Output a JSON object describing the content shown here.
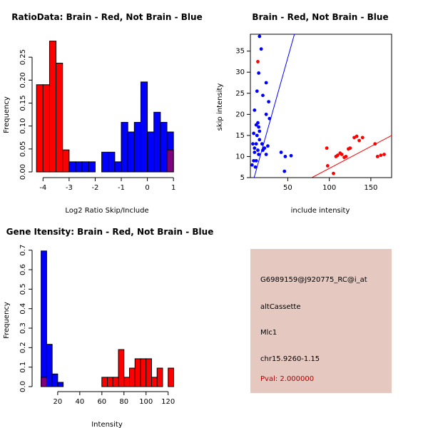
{
  "colors": {
    "red": "#ff0000",
    "blue": "#0000ff",
    "overlap": "#80007f",
    "info_bg": "#e5c8c0",
    "pval": "#b00000"
  },
  "chart_data": [
    {
      "type": "bar",
      "title": "RatioData: Brain - Red, Not Brain - Blue",
      "xlabel": "Log2 Ratio Skip/Include",
      "ylabel": "Frequency",
      "xlim": [
        -4.2,
        1.05
      ],
      "ylim": [
        0,
        0.3
      ],
      "xticks": [
        -4,
        -3,
        -2,
        -1,
        0,
        1
      ],
      "yticks": [
        0.0,
        0.05,
        0.1,
        0.15,
        0.2,
        0.25
      ],
      "ytick_labels": [
        "0.00",
        "0.05",
        "0.10",
        "0.15",
        "0.20",
        "0.25"
      ],
      "bin_width": 0.25,
      "series": [
        {
          "name": "Brain",
          "color": "red",
          "bins": [
            [
              -4.25,
              0.19
            ],
            [
              -4.0,
              0.19
            ],
            [
              -3.75,
              0.285
            ],
            [
              -3.5,
              0.237
            ],
            [
              -3.25,
              0.048
            ]
          ]
        },
        {
          "name": "Not Brain",
          "color": "blue",
          "bins": [
            [
              -3.0,
              0.022
            ],
            [
              -2.75,
              0.022
            ],
            [
              -2.5,
              0.022
            ],
            [
              -2.25,
              0.022
            ],
            [
              -1.75,
              0.043
            ],
            [
              -1.5,
              0.043
            ],
            [
              -1.25,
              0.022
            ],
            [
              -1.0,
              0.108
            ],
            [
              -0.75,
              0.087
            ],
            [
              -0.5,
              0.108
            ],
            [
              -0.25,
              0.196
            ],
            [
              0.0,
              0.087
            ],
            [
              0.25,
              0.13
            ],
            [
              0.5,
              0.108
            ],
            [
              0.75,
              0.087
            ]
          ]
        }
      ],
      "overlap_bins": [
        [
          0.75,
          0.048
        ]
      ]
    },
    {
      "type": "scatter",
      "title": "Brain - Red, Not Brain - Blue",
      "xlabel": "include intensity",
      "ylabel": "skip intensity",
      "xlim": [
        5,
        175
      ],
      "ylim": [
        5,
        39
      ],
      "xticks": [
        50,
        100,
        150
      ],
      "yticks": [
        5,
        10,
        15,
        20,
        25,
        30,
        35
      ],
      "series": [
        {
          "name": "Brain",
          "color": "red",
          "points": [
            [
              14,
              32.5
            ],
            [
              97,
              12
            ],
            [
              98,
              7.8
            ],
            [
              105,
              6
            ],
            [
              108,
              10
            ],
            [
              110,
              10.3
            ],
            [
              113,
              10.8
            ],
            [
              115,
              10.5
            ],
            [
              118,
              9.8
            ],
            [
              120,
              10
            ],
            [
              123,
              11.8
            ],
            [
              125,
              12
            ],
            [
              130,
              14.5
            ],
            [
              133,
              14.8
            ],
            [
              136,
              13.8
            ],
            [
              140,
              14.5
            ],
            [
              155,
              13
            ],
            [
              158,
              10
            ],
            [
              162,
              10.3
            ],
            [
              166,
              10.5
            ]
          ]
        },
        {
          "name": "Not Brain",
          "color": "blue",
          "points": [
            [
              16,
              38.5
            ],
            [
              18,
              35.5
            ],
            [
              15,
              29.8
            ],
            [
              24,
              27.5
            ],
            [
              13,
              25.5
            ],
            [
              20,
              24.5
            ],
            [
              27,
              23
            ],
            [
              10,
              21
            ],
            [
              24,
              20
            ],
            [
              28,
              19
            ],
            [
              14,
              18
            ],
            [
              12,
              17.5
            ],
            [
              15,
              17
            ],
            [
              16,
              16
            ],
            [
              9,
              15.5
            ],
            [
              13,
              15
            ],
            [
              16,
              14
            ],
            [
              8,
              13
            ],
            [
              12,
              13
            ],
            [
              19,
              13
            ],
            [
              22,
              12
            ],
            [
              10,
              12
            ],
            [
              14,
              11.5
            ],
            [
              20,
              11.5
            ],
            [
              26,
              12.5
            ],
            [
              10,
              11
            ],
            [
              15,
              10.5
            ],
            [
              24,
              10.5
            ],
            [
              42,
              11
            ],
            [
              47,
              10
            ],
            [
              54,
              10.2
            ],
            [
              9,
              9
            ],
            [
              12,
              9
            ],
            [
              7,
              8
            ],
            [
              11,
              7.5
            ],
            [
              46,
              6.5
            ]
          ]
        }
      ],
      "fit_lines": [
        {
          "color": "blue",
          "from": [
            9.5,
            5
          ],
          "to": [
            58,
            39
          ]
        },
        {
          "color": "red",
          "from": [
            79,
            5
          ],
          "to": [
            175,
            15
          ]
        }
      ]
    },
    {
      "type": "bar",
      "title": "Gene Itensity: Brain - Red, Not Brain - Blue",
      "xlabel": "Intensity",
      "ylabel": "Frequency",
      "xlim": [
        2,
        126
      ],
      "ylim": [
        0,
        0.71
      ],
      "xticks": [
        20,
        40,
        60,
        80,
        100,
        120
      ],
      "yticks": [
        0.0,
        0.1,
        0.2,
        0.3,
        0.4,
        0.5,
        0.6,
        0.7
      ],
      "ytick_labels": [
        "0.0",
        "0.1",
        "0.2",
        "0.3",
        "0.4",
        "0.5",
        "0.6",
        "0.7"
      ],
      "bin_width": 5,
      "series": [
        {
          "name": "Not Brain",
          "color": "blue",
          "bins": [
            [
              5,
              0.696
            ],
            [
              10,
              0.217
            ],
            [
              15,
              0.065
            ],
            [
              20,
              0.022
            ]
          ]
        },
        {
          "name": "Brain",
          "color": "red",
          "bins": [
            [
              60,
              0.048
            ],
            [
              65,
              0.048
            ],
            [
              70,
              0.048
            ],
            [
              75,
              0.19
            ],
            [
              80,
              0.048
            ],
            [
              85,
              0.095
            ],
            [
              90,
              0.143
            ],
            [
              95,
              0.143
            ],
            [
              100,
              0.143
            ],
            [
              105,
              0.048
            ],
            [
              110,
              0.095
            ],
            [
              120,
              0.095
            ]
          ]
        }
      ],
      "overlap_bins": [
        [
          5,
          0.048
        ]
      ]
    }
  ],
  "info_panel": {
    "probe": "G6989159@J920775_RC@i_at",
    "event_type": "altCassette",
    "gene": "Mlc1",
    "location": "chr15.9260-1.15",
    "pval": "Pval: 2.000000"
  }
}
